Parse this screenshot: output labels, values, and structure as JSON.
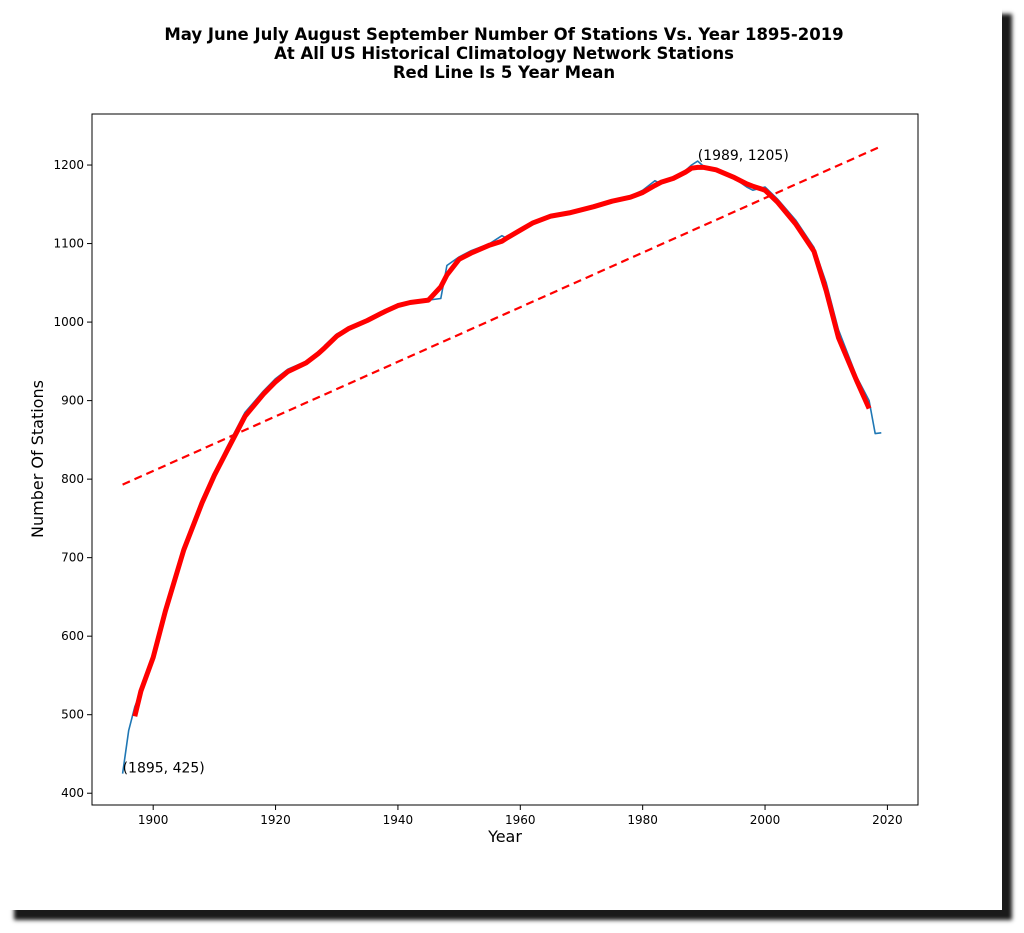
{
  "chart_data": {
    "type": "line",
    "title_lines": [
      "May June July August September Number Of Stations Vs. Year 1895-2019",
      "At All US Historical Climatology Network Stations",
      "Red Line Is 5 Year Mean"
    ],
    "xlabel": "Year",
    "ylabel": "Number Of Stations",
    "xlim": [
      1890,
      2025
    ],
    "ylim": [
      385,
      1265
    ],
    "xticks": [
      1900,
      1920,
      1940,
      1960,
      1980,
      2000,
      2020
    ],
    "yticks": [
      400,
      500,
      600,
      700,
      800,
      900,
      1000,
      1100,
      1200
    ],
    "grid": false,
    "colors": {
      "raw": "#1f77b4",
      "mean": "#ff0000",
      "trend": "#ff0000"
    },
    "series": [
      {
        "name": "stations",
        "x": [
          1895,
          1896,
          1897,
          1898,
          1900,
          1902,
          1905,
          1908,
          1910,
          1912,
          1915,
          1918,
          1920,
          1922,
          1925,
          1927,
          1928,
          1930,
          1932,
          1935,
          1938,
          1940,
          1942,
          1945,
          1947,
          1948,
          1950,
          1952,
          1955,
          1957,
          1958,
          1960,
          1962,
          1965,
          1968,
          1970,
          1972,
          1975,
          1978,
          1980,
          1982,
          1983,
          1985,
          1987,
          1988,
          1989,
          1990,
          1992,
          1995,
          1997,
          1998,
          2000,
          2002,
          2005,
          2008,
          2010,
          2012,
          2015,
          2017,
          2018,
          2019
        ],
        "y": [
          425,
          480,
          510,
          530,
          575,
          635,
          715,
          775,
          808,
          840,
          885,
          912,
          928,
          940,
          950,
          958,
          970,
          985,
          993,
          1003,
          1015,
          1022,
          1026,
          1028,
          1030,
          1072,
          1083,
          1091,
          1100,
          1110,
          1106,
          1118,
          1128,
          1136,
          1140,
          1144,
          1149,
          1155,
          1160,
          1168,
          1180,
          1176,
          1184,
          1193,
          1200,
          1205,
          1198,
          1195,
          1183,
          1172,
          1168,
          1172,
          1157,
          1130,
          1095,
          1050,
          990,
          930,
          900,
          858,
          859
        ]
      },
      {
        "name": "5 year mean",
        "x": [
          1897,
          1898,
          1900,
          1902,
          1905,
          1908,
          1910,
          1912,
          1915,
          1918,
          1920,
          1922,
          1925,
          1927,
          1928,
          1930,
          1932,
          1935,
          1938,
          1940,
          1942,
          1945,
          1947,
          1948,
          1950,
          1952,
          1955,
          1957,
          1958,
          1960,
          1962,
          1965,
          1968,
          1970,
          1972,
          1975,
          1978,
          1980,
          1982,
          1983,
          1985,
          1987,
          1988,
          1989,
          1990,
          1992,
          1995,
          1997,
          1998,
          2000,
          2002,
          2005,
          2008,
          2010,
          2012,
          2015,
          2017
        ],
        "y": [
          498,
          530,
          573,
          632,
          710,
          770,
          805,
          835,
          880,
          908,
          924,
          937,
          948,
          960,
          967,
          982,
          992,
          1002,
          1014,
          1021,
          1025,
          1028,
          1045,
          1060,
          1080,
          1088,
          1098,
          1103,
          1108,
          1117,
          1126,
          1135,
          1139,
          1143,
          1147,
          1154,
          1159,
          1165,
          1174,
          1178,
          1183,
          1191,
          1196,
          1197,
          1197,
          1194,
          1184,
          1176,
          1173,
          1168,
          1153,
          1125,
          1090,
          1040,
          980,
          925,
          890
        ]
      },
      {
        "name": "trend",
        "x": [
          1895,
          2019
        ],
        "y": [
          793,
          1224
        ]
      }
    ],
    "annotations": [
      {
        "label": "(1895, 425)",
        "x": 1895,
        "y": 425
      },
      {
        "label": "(1989, 1205)",
        "x": 1989,
        "y": 1205
      }
    ]
  }
}
